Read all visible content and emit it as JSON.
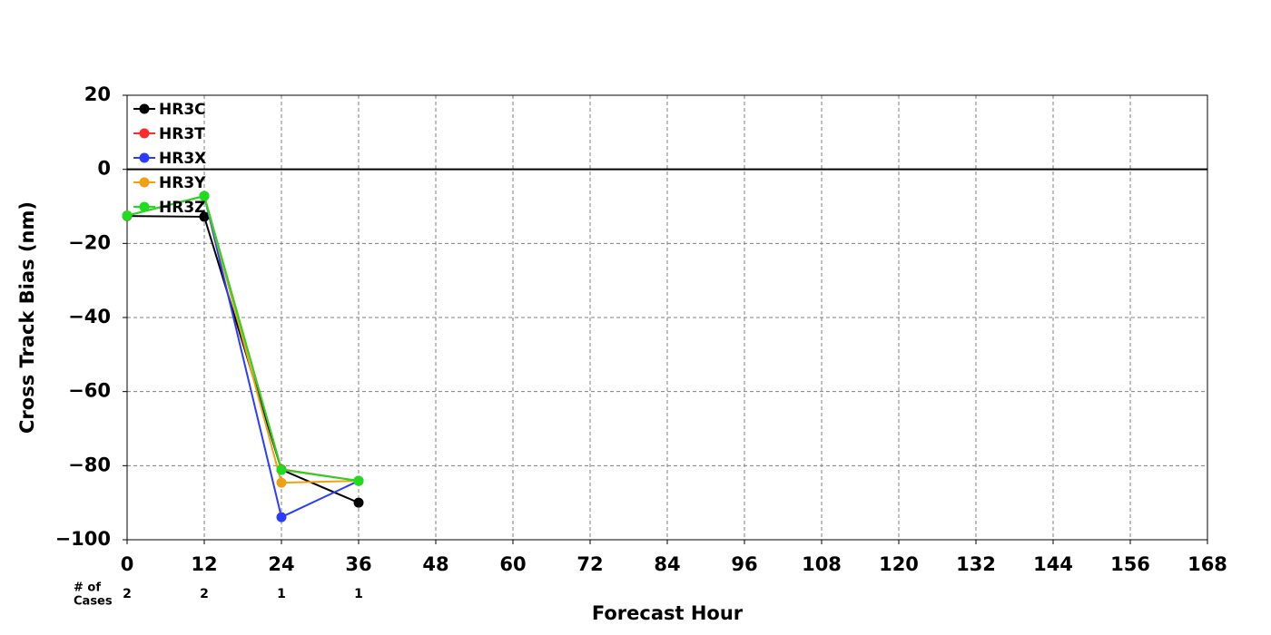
{
  "chart_data": {
    "type": "line",
    "ylabel": "Cross Track Bias (nm)",
    "xlabel": "Forecast Hour",
    "x": [
      0,
      12,
      24,
      36
    ],
    "series": [
      {
        "name": "HR3C",
        "color": "#000000",
        "values": [
          -12.6,
          -12.8,
          -81.1,
          -90.0
        ]
      },
      {
        "name": "HR3T",
        "color": "#ff2a2a",
        "values": [
          -12.5,
          -7.2,
          -81.0,
          -84.1
        ]
      },
      {
        "name": "HR3X",
        "color": "#2a3cff",
        "values": [
          -12.5,
          -7.2,
          -93.9,
          -84.1
        ]
      },
      {
        "name": "HR3Y",
        "color": "#f0a010",
        "values": [
          -12.5,
          -7.2,
          -84.6,
          -84.1
        ]
      },
      {
        "name": "HR3Z",
        "color": "#1edc1e",
        "values": [
          -12.5,
          -7.2,
          -81.1,
          -84.1
        ]
      }
    ],
    "xlim": [
      0,
      168
    ],
    "xticks": [
      0,
      12,
      24,
      36,
      48,
      60,
      72,
      84,
      96,
      108,
      120,
      132,
      144,
      156,
      168
    ],
    "ylim": [
      -100,
      20
    ],
    "yticks": [
      {
        "value": -100,
        "label": "−100"
      },
      {
        "value": -80,
        "label": "−80"
      },
      {
        "value": -60,
        "label": "−60"
      },
      {
        "value": -40,
        "label": "−40"
      },
      {
        "value": -20,
        "label": "−20"
      },
      0,
      20
    ],
    "hline": 0,
    "grid": true,
    "legend": "upper left",
    "cases_label": [
      "# of",
      "Cases"
    ],
    "cases": [
      2,
      2,
      1,
      1
    ]
  }
}
